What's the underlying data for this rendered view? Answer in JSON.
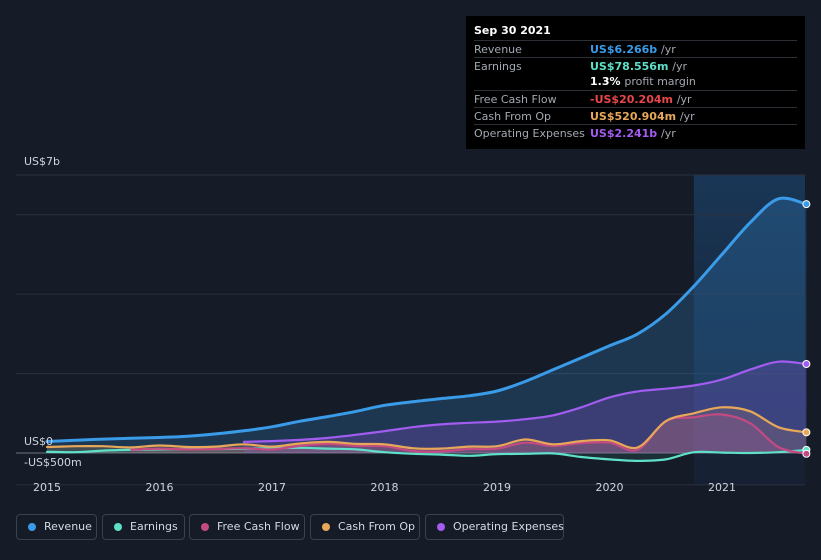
{
  "tooltip": {
    "date": "Sep 30 2021",
    "rows": [
      {
        "label": "Revenue",
        "value": "US$6.266b",
        "unit": "/yr",
        "color": "#3a9be8"
      },
      {
        "label": "Earnings",
        "value": "US$78.556m",
        "unit": "/yr",
        "color": "#5fe0c8"
      },
      {
        "label": "",
        "value": "1.3%",
        "unit": "profit margin",
        "color": "#ffffff"
      },
      {
        "label": "Free Cash Flow",
        "value": "-US$20.204m",
        "unit": "/yr",
        "color": "#e8464a"
      },
      {
        "label": "Cash From Op",
        "value": "US$520.904m",
        "unit": "/yr",
        "color": "#e8a85a"
      },
      {
        "label": "Operating Expenses",
        "value": "US$2.241b",
        "unit": "/yr",
        "color": "#a35cf0"
      }
    ]
  },
  "chart_data": {
    "type": "line",
    "y_tick_labels": [
      "US$7b",
      "US$0",
      "-US$500m"
    ],
    "x_tick_labels": [
      "2015",
      "2016",
      "2017",
      "2018",
      "2019",
      "2020",
      "2021"
    ],
    "ylim": [
      -500,
      7000
    ],
    "y_unit": "US$m",
    "shaded_period": {
      "from": 2020.75,
      "to": 2021.75
    },
    "grid": true,
    "legend_position": "bottom",
    "series": [
      {
        "name": "Revenue",
        "color": "#3a9be8",
        "x": [
          2015.0,
          2015.25,
          2015.5,
          2015.75,
          2016.0,
          2016.25,
          2016.5,
          2016.75,
          2017.0,
          2017.25,
          2017.5,
          2017.75,
          2018.0,
          2018.25,
          2018.5,
          2018.75,
          2019.0,
          2019.25,
          2019.5,
          2019.75,
          2020.0,
          2020.25,
          2020.5,
          2020.75,
          2021.0,
          2021.25,
          2021.5,
          2021.75
        ],
        "values": [
          290,
          320,
          350,
          370,
          390,
          420,
          480,
          560,
          660,
          800,
          920,
          1050,
          1200,
          1290,
          1370,
          1440,
          1560,
          1800,
          2100,
          2400,
          2700,
          3000,
          3500,
          4200,
          5000,
          5800,
          6400,
          6266
        ]
      },
      {
        "name": "Earnings",
        "color": "#5fe0c8",
        "x": [
          2015.0,
          2015.25,
          2015.5,
          2015.75,
          2016.0,
          2016.25,
          2016.5,
          2016.75,
          2017.0,
          2017.25,
          2017.5,
          2017.75,
          2018.0,
          2018.25,
          2018.5,
          2018.75,
          2019.0,
          2019.25,
          2019.5,
          2019.75,
          2020.0,
          2020.25,
          2020.5,
          2020.75,
          2021.0,
          2021.25,
          2021.5,
          2021.75
        ],
        "values": [
          30,
          20,
          60,
          80,
          90,
          100,
          100,
          110,
          120,
          130,
          110,
          90,
          20,
          -20,
          -40,
          -70,
          -30,
          -20,
          -10,
          -100,
          -160,
          -200,
          -160,
          20,
          10,
          0,
          20,
          78.556
        ]
      },
      {
        "name": "Free Cash Flow",
        "color": "#c44a82",
        "x": [
          2015.75,
          2016.0,
          2016.25,
          2016.5,
          2016.75,
          2017.0,
          2017.25,
          2017.5,
          2017.75,
          2018.0,
          2018.25,
          2018.5,
          2018.75,
          2019.0,
          2019.25,
          2019.5,
          2019.75,
          2020.0,
          2020.25,
          2020.5,
          2020.75,
          2021.0,
          2021.25,
          2021.5,
          2021.75
        ],
        "values": [
          80,
          110,
          90,
          100,
          120,
          90,
          180,
          230,
          180,
          170,
          50,
          40,
          100,
          110,
          260,
          180,
          250,
          260,
          80,
          800,
          900,
          970,
          750,
          150,
          -20.204
        ]
      },
      {
        "name": "Cash From Op",
        "color": "#e8a85a",
        "x": [
          2015.0,
          2015.25,
          2015.5,
          2015.75,
          2016.0,
          2016.25,
          2016.5,
          2016.75,
          2017.0,
          2017.25,
          2017.5,
          2017.75,
          2018.0,
          2018.25,
          2018.5,
          2018.75,
          2019.0,
          2019.25,
          2019.5,
          2019.75,
          2020.0,
          2020.25,
          2020.5,
          2020.75,
          2021.0,
          2021.25,
          2021.5,
          2021.75
        ],
        "values": [
          150,
          170,
          170,
          140,
          190,
          150,
          160,
          220,
          160,
          240,
          280,
          230,
          220,
          120,
          110,
          160,
          170,
          340,
          220,
          300,
          320,
          140,
          800,
          1000,
          1150,
          1050,
          650,
          520.904
        ]
      },
      {
        "name": "Operating Expenses",
        "color": "#a35cf0",
        "x": [
          2016.75,
          2017.0,
          2017.25,
          2017.5,
          2017.75,
          2018.0,
          2018.25,
          2018.5,
          2018.75,
          2019.0,
          2019.25,
          2019.5,
          2019.75,
          2020.0,
          2020.25,
          2020.5,
          2020.75,
          2021.0,
          2021.25,
          2021.5,
          2021.75
        ],
        "values": [
          280,
          300,
          330,
          380,
          460,
          550,
          650,
          720,
          760,
          790,
          850,
          950,
          1150,
          1400,
          1550,
          1620,
          1700,
          1850,
          2100,
          2300,
          2241
        ]
      }
    ]
  }
}
